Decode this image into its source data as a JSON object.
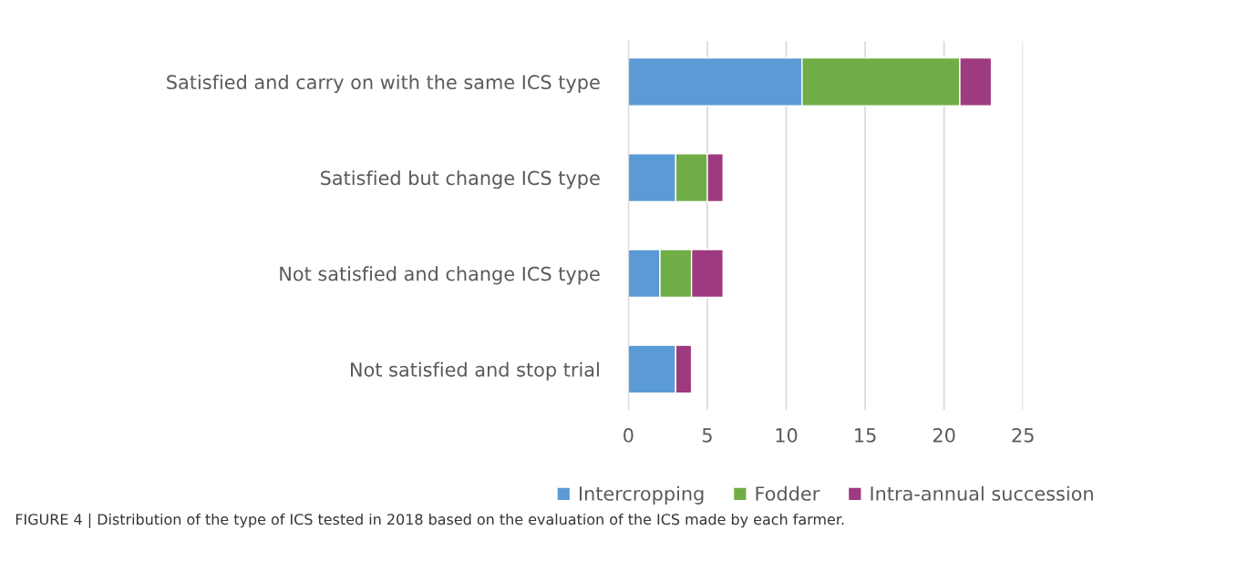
{
  "chart_data": {
    "type": "bar",
    "orientation": "horizontal",
    "stacked": true,
    "categories": [
      "Satisfied and carry on with the same ICS type",
      "Satisfied but change ICS type",
      "Not satisfied and change ICS type",
      "Not satisfied and stop trial"
    ],
    "series": [
      {
        "name": "Intercropping",
        "color": "#5b9bd5",
        "values": [
          11,
          3,
          2,
          3
        ]
      },
      {
        "name": "Fodder",
        "color": "#70ad47",
        "values": [
          10,
          2,
          2,
          0
        ]
      },
      {
        "name": "Intra-annual succession",
        "color": "#9e3a7f",
        "values": [
          2,
          1,
          2,
          1
        ]
      }
    ],
    "xlim": [
      0,
      25
    ],
    "xticks": [
      0,
      5,
      10,
      15,
      20,
      25
    ],
    "grid": "x",
    "legend": "bottom",
    "annotations": [
      "FIGURE 4 | Distribution of the type of ICS tested in 2018 based on the evaluation of the ICS made by each farmer."
    ]
  }
}
